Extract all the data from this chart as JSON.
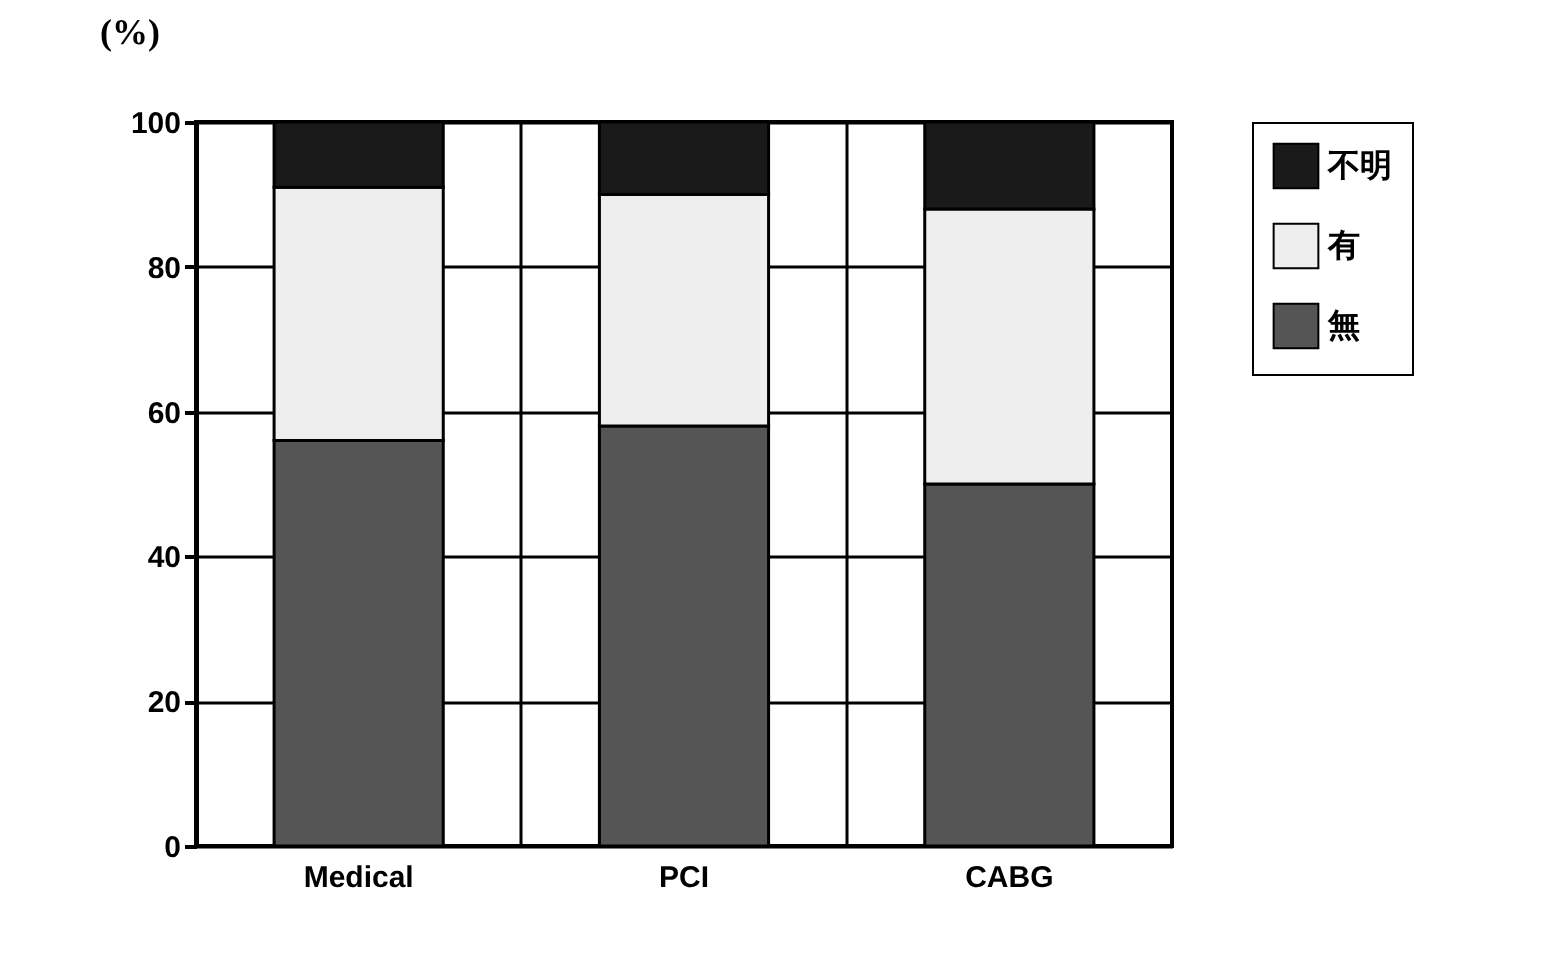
{
  "chart_data": {
    "type": "bar",
    "ylabel": "(%)",
    "categories": [
      "Medical",
      "PCI",
      "CABG"
    ],
    "stacked": true,
    "ylim": [
      0,
      100
    ],
    "yticks": [
      0,
      20,
      40,
      60,
      80,
      100
    ],
    "grid": true,
    "legend": "top right",
    "series": [
      {
        "name": "無",
        "color": "#555555",
        "values": [
          56,
          58,
          50
        ]
      },
      {
        "name": "有",
        "color": "#eeeeee",
        "values": [
          35,
          32,
          38
        ]
      },
      {
        "name": "不明",
        "color": "#1a1a1a",
        "values": [
          9,
          10,
          12
        ]
      }
    ]
  }
}
